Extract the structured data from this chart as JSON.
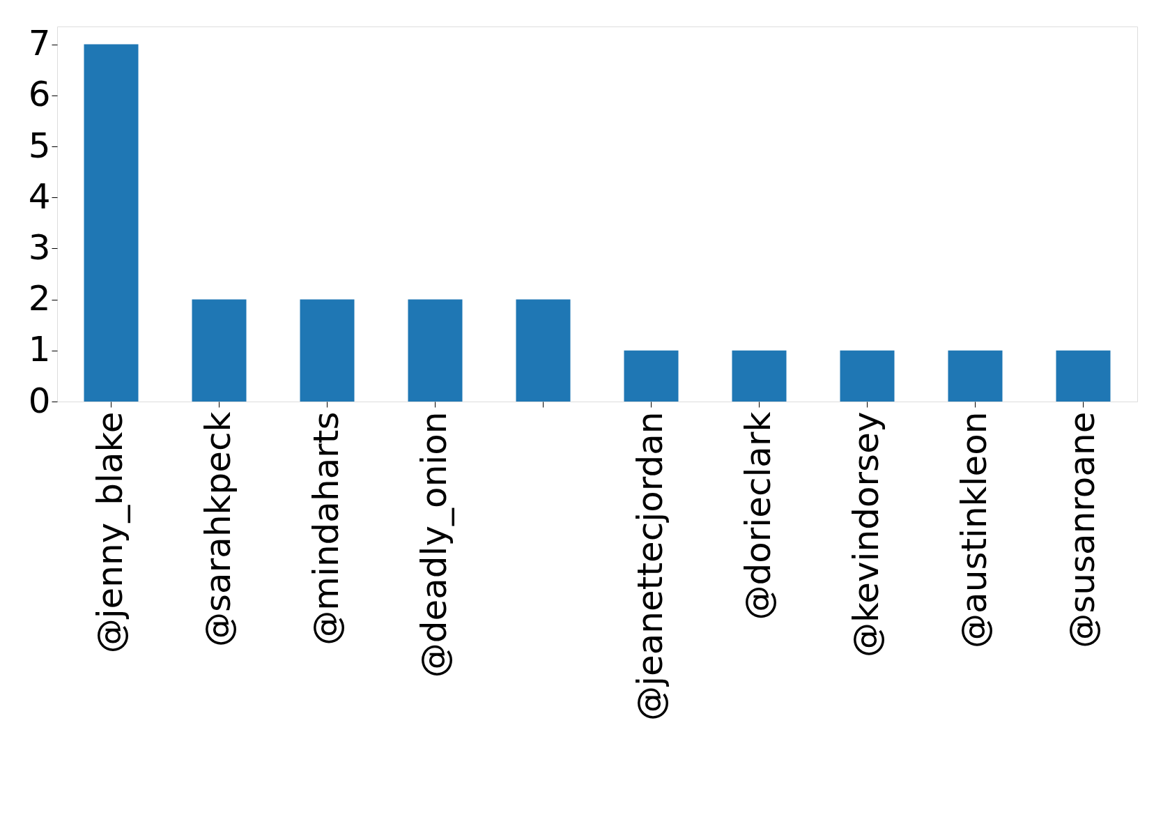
{
  "chart_data": {
    "type": "bar",
    "categories": [
      "@jenny_blake",
      "@sarahkpeck",
      "@mindaharts",
      "@deadly_onion",
      null,
      "@jeanettecjordan",
      "@dorieclark",
      "@kevindorsey",
      "@austinkleon",
      "@susanroane"
    ],
    "values": [
      7,
      2,
      2,
      2,
      2,
      1,
      1,
      1,
      1,
      1
    ],
    "color": "#1f77b4",
    "ylim": [
      0,
      7.35
    ],
    "yticks": [
      0,
      1,
      2,
      3,
      4,
      5,
      6,
      7
    ],
    "grid": false
  }
}
